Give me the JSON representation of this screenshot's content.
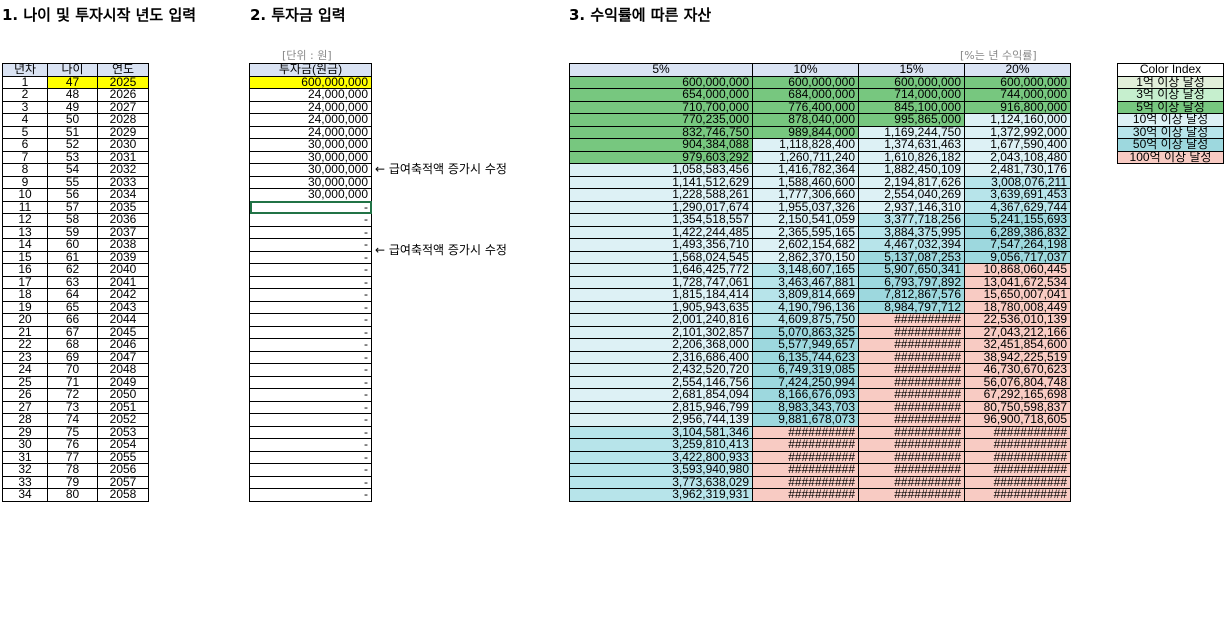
{
  "sections": {
    "age_title": "1. 나이 및 투자시작 년도 입력",
    "invest_title": "2. 투자금 입력",
    "assets_title": "3. 수익률에 따른 자산"
  },
  "units": {
    "invest": "[단위 : 원]",
    "rate": "[%는 년 수익률]"
  },
  "age_headers": [
    "년차",
    "나이",
    "연도"
  ],
  "invest_header": "투자금(원금)",
  "rate_headers": [
    "5%",
    "10%",
    "15%",
    "20%"
  ],
  "notes": [
    "← 급여축적액 증가시 수정",
    "← 급여축적액 증가시 수정"
  ],
  "legend": {
    "title": "Color Index",
    "items": [
      "1억 이상 달성",
      "3억 이상 달성",
      "5억 이상 달성",
      "10억 이상 달성",
      "30억 이상 달성",
      "50억 이상 달성",
      "100억 이상 달성"
    ]
  },
  "colors": {
    "header": "#dae3f3",
    "yellow": "#ffff00",
    "tiers": [
      "#e2efda",
      "#c6efce",
      "#77c77f",
      "#ddf1f5",
      "#b7e4ea",
      "#9dd8de",
      "#f8cbc3"
    ]
  },
  "rows": [
    {
      "year": "1",
      "age": "47",
      "calendar": "2025",
      "invest": "600,000,000",
      "r5": "600,000,000",
      "r10": "600,000,000",
      "r15": "600,000,000",
      "r20": "600,000,000"
    },
    {
      "year": "2",
      "age": "48",
      "calendar": "2026",
      "invest": "24,000,000",
      "r5": "654,000,000",
      "r10": "684,000,000",
      "r15": "714,000,000",
      "r20": "744,000,000"
    },
    {
      "year": "3",
      "age": "49",
      "calendar": "2027",
      "invest": "24,000,000",
      "r5": "710,700,000",
      "r10": "776,400,000",
      "r15": "845,100,000",
      "r20": "916,800,000"
    },
    {
      "year": "4",
      "age": "50",
      "calendar": "2028",
      "invest": "24,000,000",
      "r5": "770,235,000",
      "r10": "878,040,000",
      "r15": "995,865,000",
      "r20": "1,124,160,000"
    },
    {
      "year": "5",
      "age": "51",
      "calendar": "2029",
      "invest": "24,000,000",
      "r5": "832,746,750",
      "r10": "989,844,000",
      "r15": "1,169,244,750",
      "r20": "1,372,992,000"
    },
    {
      "year": "6",
      "age": "52",
      "calendar": "2030",
      "invest": "30,000,000",
      "r5": "904,384,088",
      "r10": "1,118,828,400",
      "r15": "1,374,631,463",
      "r20": "1,677,590,400"
    },
    {
      "year": "7",
      "age": "53",
      "calendar": "2031",
      "invest": "30,000,000",
      "r5": "979,603,292",
      "r10": "1,260,711,240",
      "r15": "1,610,826,182",
      "r20": "2,043,108,480"
    },
    {
      "year": "8",
      "age": "54",
      "calendar": "2032",
      "invest": "30,000,000",
      "r5": "1,058,583,456",
      "r10": "1,416,782,364",
      "r15": "1,882,450,109",
      "r20": "2,481,730,176"
    },
    {
      "year": "9",
      "age": "55",
      "calendar": "2033",
      "invest": "30,000,000",
      "r5": "1,141,512,629",
      "r10": "1,588,460,600",
      "r15": "2,194,817,626",
      "r20": "3,008,076,211"
    },
    {
      "year": "10",
      "age": "56",
      "calendar": "2034",
      "invest": "30,000,000",
      "r5": "1,228,588,261",
      "r10": "1,777,306,660",
      "r15": "2,554,040,269",
      "r20": "3,639,691,453"
    },
    {
      "year": "11",
      "age": "57",
      "calendar": "2035",
      "invest": "-",
      "r5": "1,290,017,674",
      "r10": "1,955,037,326",
      "r15": "2,937,146,310",
      "r20": "4,367,629,744"
    },
    {
      "year": "12",
      "age": "58",
      "calendar": "2036",
      "invest": "-",
      "r5": "1,354,518,557",
      "r10": "2,150,541,059",
      "r15": "3,377,718,256",
      "r20": "5,241,155,693"
    },
    {
      "year": "13",
      "age": "59",
      "calendar": "2037",
      "invest": "-",
      "r5": "1,422,244,485",
      "r10": "2,365,595,165",
      "r15": "3,884,375,995",
      "r20": "6,289,386,832"
    },
    {
      "year": "14",
      "age": "60",
      "calendar": "2038",
      "invest": "-",
      "r5": "1,493,356,710",
      "r10": "2,602,154,682",
      "r15": "4,467,032,394",
      "r20": "7,547,264,198"
    },
    {
      "year": "15",
      "age": "61",
      "calendar": "2039",
      "invest": "-",
      "r5": "1,568,024,545",
      "r10": "2,862,370,150",
      "r15": "5,137,087,253",
      "r20": "9,056,717,037"
    },
    {
      "year": "16",
      "age": "62",
      "calendar": "2040",
      "invest": "-",
      "r5": "1,646,425,772",
      "r10": "3,148,607,165",
      "r15": "5,907,650,341",
      "r20": "10,868,060,445"
    },
    {
      "year": "17",
      "age": "63",
      "calendar": "2041",
      "invest": "-",
      "r5": "1,728,747,061",
      "r10": "3,463,467,881",
      "r15": "6,793,797,892",
      "r20": "13,041,672,534"
    },
    {
      "year": "18",
      "age": "64",
      "calendar": "2042",
      "invest": "-",
      "r5": "1,815,184,414",
      "r10": "3,809,814,669",
      "r15": "7,812,867,576",
      "r20": "15,650,007,041"
    },
    {
      "year": "19",
      "age": "65",
      "calendar": "2043",
      "invest": "-",
      "r5": "1,905,943,635",
      "r10": "4,190,796,136",
      "r15": "8,984,797,712",
      "r20": "18,780,008,449"
    },
    {
      "year": "20",
      "age": "66",
      "calendar": "2044",
      "invest": "-",
      "r5": "2,001,240,816",
      "r10": "4,609,875,750",
      "r15": "##########",
      "r20": "22,536,010,139"
    },
    {
      "year": "21",
      "age": "67",
      "calendar": "2045",
      "invest": "-",
      "r5": "2,101,302,857",
      "r10": "5,070,863,325",
      "r15": "##########",
      "r20": "27,043,212,166"
    },
    {
      "year": "22",
      "age": "68",
      "calendar": "2046",
      "invest": "-",
      "r5": "2,206,368,000",
      "r10": "5,577,949,657",
      "r15": "##########",
      "r20": "32,451,854,600"
    },
    {
      "year": "23",
      "age": "69",
      "calendar": "2047",
      "invest": "-",
      "r5": "2,316,686,400",
      "r10": "6,135,744,623",
      "r15": "##########",
      "r20": "38,942,225,519"
    },
    {
      "year": "24",
      "age": "70",
      "calendar": "2048",
      "invest": "-",
      "r5": "2,432,520,720",
      "r10": "6,749,319,085",
      "r15": "##########",
      "r20": "46,730,670,623"
    },
    {
      "year": "25",
      "age": "71",
      "calendar": "2049",
      "invest": "-",
      "r5": "2,554,146,756",
      "r10": "7,424,250,994",
      "r15": "##########",
      "r20": "56,076,804,748"
    },
    {
      "year": "26",
      "age": "72",
      "calendar": "2050",
      "invest": "-",
      "r5": "2,681,854,094",
      "r10": "8,166,676,093",
      "r15": "##########",
      "r20": "67,292,165,698"
    },
    {
      "year": "27",
      "age": "73",
      "calendar": "2051",
      "invest": "-",
      "r5": "2,815,946,799",
      "r10": "8,983,343,703",
      "r15": "##########",
      "r20": "80,750,598,837"
    },
    {
      "year": "28",
      "age": "74",
      "calendar": "2052",
      "invest": "-",
      "r5": "2,956,744,139",
      "r10": "9,881,678,073",
      "r15": "##########",
      "r20": "96,900,718,605"
    },
    {
      "year": "29",
      "age": "75",
      "calendar": "2053",
      "invest": "-",
      "r5": "3,104,581,346",
      "r10": "##########",
      "r15": "##########",
      "r20": "###########"
    },
    {
      "year": "30",
      "age": "76",
      "calendar": "2054",
      "invest": "-",
      "r5": "3,259,810,413",
      "r10": "##########",
      "r15": "##########",
      "r20": "###########"
    },
    {
      "year": "31",
      "age": "77",
      "calendar": "2055",
      "invest": "-",
      "r5": "3,422,800,933",
      "r10": "##########",
      "r15": "##########",
      "r20": "###########"
    },
    {
      "year": "32",
      "age": "78",
      "calendar": "2056",
      "invest": "-",
      "r5": "3,593,940,980",
      "r10": "##########",
      "r15": "##########",
      "r20": "###########"
    },
    {
      "year": "33",
      "age": "79",
      "calendar": "2057",
      "invest": "-",
      "r5": "3,773,638,029",
      "r10": "##########",
      "r15": "##########",
      "r20": "###########"
    },
    {
      "year": "34",
      "age": "80",
      "calendar": "2058",
      "invest": "-",
      "r5": "3,962,319,931",
      "r10": "##########",
      "r15": "##########",
      "r20": "###########"
    }
  ]
}
